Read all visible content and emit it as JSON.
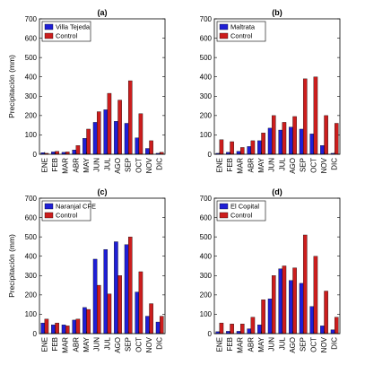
{
  "colors": {
    "station": "#1f1fd6",
    "control": "#cc1d1d"
  },
  "chart_data": [
    {
      "type": "bar",
      "title": "(a)",
      "ylabel": "Precipitación (mm)",
      "ylim": [
        0,
        700
      ],
      "yticks": [
        0,
        100,
        200,
        300,
        400,
        500,
        600,
        700
      ],
      "legend_position": "top-left",
      "categories": [
        "ENE",
        "FEB",
        "MAR",
        "ABR",
        "MAY",
        "JUN",
        "JUL",
        "AGO",
        "SEP",
        "OCT",
        "NOV",
        "DIC"
      ],
      "series": [
        {
          "name": "Villa Tejeda",
          "values": [
            8,
            12,
            10,
            22,
            82,
            165,
            230,
            170,
            160,
            85,
            30,
            5
          ]
        },
        {
          "name": "Control",
          "values": [
            5,
            15,
            12,
            45,
            130,
            220,
            315,
            280,
            380,
            210,
            70,
            10
          ]
        }
      ]
    },
    {
      "type": "bar",
      "title": "(b)",
      "ylabel": "",
      "ylim": [
        0,
        700
      ],
      "yticks": [
        0,
        100,
        200,
        300,
        400,
        500,
        600,
        700
      ],
      "legend_position": "top-left",
      "categories": [
        "ENE",
        "FEB",
        "MAR",
        "ABR",
        "MAY",
        "JUN",
        "JUL",
        "AGO",
        "SEP",
        "OCT",
        "NOV",
        "DIC"
      ],
      "series": [
        {
          "name": "Maltrata",
          "values": [
            5,
            10,
            15,
            40,
            70,
            135,
            125,
            140,
            130,
            105,
            45,
            5
          ]
        },
        {
          "name": "Control",
          "values": [
            75,
            65,
            35,
            70,
            110,
            200,
            165,
            195,
            390,
            400,
            200,
            160
          ]
        }
      ]
    },
    {
      "type": "bar",
      "title": "(c)",
      "ylabel": "Precipitación (mm)",
      "ylim": [
        0,
        700
      ],
      "yticks": [
        0,
        100,
        200,
        300,
        400,
        500,
        600,
        700
      ],
      "legend_position": "top-left",
      "categories": [
        "ENE",
        "FEB",
        "MAR",
        "ABR",
        "MAY",
        "JUN",
        "JUL",
        "AGO",
        "SEP",
        "OCT",
        "NOV",
        "DIC"
      ],
      "series": [
        {
          "name": "Naranjal CFE",
          "values": [
            55,
            45,
            45,
            70,
            135,
            385,
            435,
            475,
            460,
            215,
            90,
            60
          ]
        },
        {
          "name": "Control",
          "values": [
            75,
            55,
            40,
            75,
            125,
            250,
            205,
            300,
            500,
            320,
            155,
            90
          ]
        }
      ]
    },
    {
      "type": "bar",
      "title": "(d)",
      "ylabel": "",
      "ylim": [
        0,
        700
      ],
      "yticks": [
        0,
        100,
        200,
        300,
        400,
        500,
        600,
        700
      ],
      "legend_position": "top-left",
      "categories": [
        "ENE",
        "FEB",
        "MAR",
        "ABR",
        "MAY",
        "JUN",
        "JUL",
        "AGO",
        "SEP",
        "OCT",
        "NOV",
        "DIC"
      ],
      "series": [
        {
          "name": "El Copital",
          "values": [
            10,
            12,
            12,
            25,
            45,
            180,
            335,
            275,
            260,
            140,
            40,
            20
          ]
        },
        {
          "name": "Control",
          "values": [
            55,
            50,
            50,
            85,
            175,
            300,
            350,
            340,
            510,
            400,
            220,
            85
          ]
        }
      ]
    }
  ]
}
